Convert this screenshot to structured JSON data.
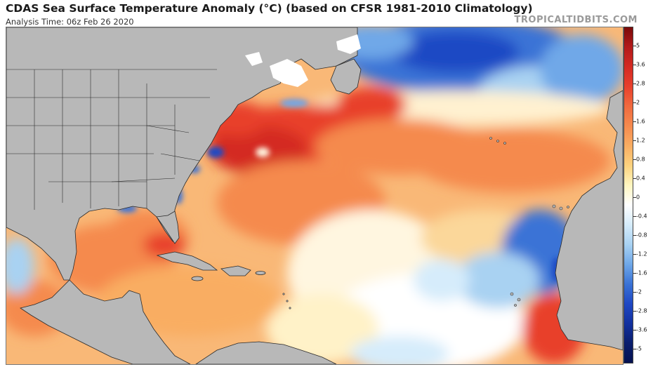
{
  "title": "CDAS Sea Surface Temperature Anomaly (°C) (based on CFSR 1981-2010 Climatology)",
  "subtitle": "Analysis Time: 06z Feb 26 2020",
  "credit": "TROPICALTIDBITS.COM",
  "colorbar": {
    "labels": [
      "5",
      "3.6",
      "2.8",
      "2",
      "1.6",
      "1.2",
      "0.8",
      "0.4",
      "0",
      "-0.4",
      "-0.8",
      "-1.2",
      "-1.6",
      "-2",
      "-2.8",
      "-3.6",
      "-5"
    ],
    "colors": [
      "#7a0a0a",
      "#b31a1a",
      "#d42a22",
      "#e8402c",
      "#f06a3e",
      "#f58a4e",
      "#f9ad62",
      "#fcd27e",
      "#fff6c0",
      "#ffffff",
      "#d6ecfb",
      "#a9d2f2",
      "#6fa8e8",
      "#3a73d6",
      "#1f48c4",
      "#1231a0",
      "#0a1e6e",
      "#061250"
    ]
  },
  "map": {
    "land_color": "#b8b8b8",
    "border_color": "#2b2b2b",
    "ice_color": "#ffffff",
    "region": "North Atlantic"
  }
}
